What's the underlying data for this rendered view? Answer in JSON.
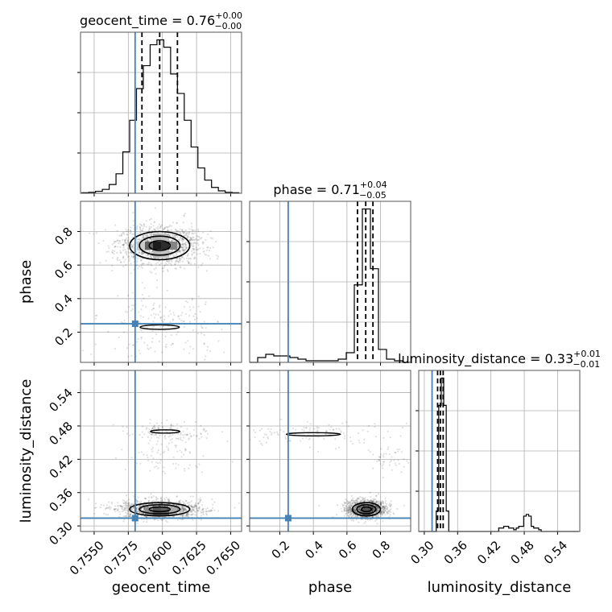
{
  "chart_data": {
    "type": "corner",
    "truth_color": "#4682b4",
    "grid": true,
    "parameters": [
      "geocent_time",
      "phase",
      "luminosity_distance"
    ],
    "truths": {
      "geocent_time": 0.758,
      "phase": 0.25,
      "luminosity_distance": 0.314
    },
    "axes": {
      "geocent_time": {
        "label": "geocent_time",
        "range": [
          0.754,
          0.7658
        ],
        "ticks": [
          0.755,
          0.7575,
          0.76,
          0.7625,
          0.765
        ],
        "tick_labels": [
          "0.7550",
          "0.7575",
          "0.7600",
          "0.7625",
          "0.7650"
        ]
      },
      "phase": {
        "label": "phase",
        "range": [
          0.02,
          0.98
        ],
        "ticks": [
          0.2,
          0.4,
          0.6,
          0.8
        ],
        "tick_labels": [
          "0.2",
          "0.4",
          "0.6",
          "0.8"
        ]
      },
      "luminosity_distance": {
        "label": "luminosity_distance",
        "range": [
          0.29,
          0.58
        ],
        "ticks": [
          0.3,
          0.36,
          0.42,
          0.48,
          0.54
        ],
        "tick_labels": [
          "0.30",
          "0.36",
          "0.42",
          "0.48",
          "0.54"
        ]
      }
    },
    "marginals": [
      {
        "param": "geocent_time",
        "title_name": "geocent_time",
        "title_value": "0.76",
        "title_plus": "+0.00",
        "title_minus": "−0.00",
        "quantiles": [
          0.7585,
          0.7598,
          0.7611
        ],
        "bin_edges": [
          0.7541,
          0.7546,
          0.7551,
          0.7556,
          0.7561,
          0.7566,
          0.7571,
          0.7576,
          0.7581,
          0.7586,
          0.7591,
          0.7596,
          0.7601,
          0.7606,
          0.7611,
          0.7616,
          0.7621,
          0.7626,
          0.7631,
          0.7636,
          0.7641,
          0.7646,
          0.7651,
          0.7656
        ],
        "counts": [
          1,
          2,
          4,
          8,
          18,
          40,
          85,
          150,
          215,
          262,
          305,
          315,
          300,
          245,
          205,
          150,
          95,
          52,
          27,
          12,
          5,
          2,
          1
        ]
      },
      {
        "param": "phase",
        "title_name": "phase",
        "title_value": "0.71",
        "title_plus": "+0.04",
        "title_minus": "−0.05",
        "quantiles": [
          0.663,
          0.712,
          0.755
        ],
        "bin_edges": [
          0.02,
          0.068,
          0.116,
          0.164,
          0.212,
          0.26,
          0.308,
          0.356,
          0.404,
          0.452,
          0.5,
          0.548,
          0.596,
          0.644,
          0.692,
          0.74,
          0.788,
          0.836,
          0.884,
          0.932,
          0.98
        ],
        "counts": [
          0,
          3,
          5,
          4,
          4,
          3,
          2,
          1,
          1,
          1,
          1,
          2,
          6,
          48,
          95,
          58,
          8,
          2,
          1,
          0
        ]
      },
      {
        "param": "luminosity_distance",
        "title_name": "luminosity_distance",
        "title_value": "0.33",
        "title_plus": "+0.01",
        "title_minus": "−0.01",
        "quantiles": [
          0.324,
          0.329,
          0.334
        ],
        "bin_edges": [
          0.29,
          0.2945,
          0.299,
          0.3035,
          0.308,
          0.3125,
          0.317,
          0.3215,
          0.326,
          0.3305,
          0.335,
          0.3395,
          0.344,
          0.3485,
          0.353,
          0.3575,
          0.362,
          0.3665,
          0.371,
          0.3755,
          0.38,
          0.3845,
          0.389,
          0.3935,
          0.398,
          0.4025,
          0.407,
          0.4115,
          0.416,
          0.4205,
          0.425,
          0.4295,
          0.434,
          0.4385,
          0.443,
          0.4475,
          0.452,
          0.4565,
          0.461,
          0.4655,
          0.47,
          0.4745,
          0.479,
          0.4835,
          0.488,
          0.4925,
          0.497,
          0.5015,
          0.506,
          0.5105,
          0.515,
          0.5195,
          0.524,
          0.5285,
          0.533,
          0.5375,
          0.542,
          0.5465,
          0.551,
          0.5555,
          0.56,
          0.5645,
          0.569,
          0.5735,
          0.578
        ],
        "counts": [
          0,
          0,
          0,
          0,
          0,
          0,
          0,
          12,
          74,
          90,
          74,
          12,
          0,
          0,
          0,
          0,
          0,
          0,
          0,
          0,
          0,
          0,
          0,
          0,
          0,
          0,
          0,
          0,
          0,
          0,
          0,
          0,
          2,
          2,
          3,
          3,
          2,
          2,
          1,
          2,
          3,
          3,
          9,
          10,
          9,
          3,
          2,
          2,
          1,
          0,
          0,
          0,
          0,
          0,
          0,
          0,
          0,
          0,
          0,
          0,
          0,
          0,
          0,
          0
        ]
      }
    ],
    "joint_2d": [
      {
        "x": "geocent_time",
        "y": "phase",
        "modes": [
          {
            "center": [
              0.7598,
              0.716
            ],
            "sigma": [
              0.0011,
              0.042
            ],
            "weight": 0.88
          },
          {
            "center": [
              0.7598,
              0.23
            ],
            "sigma": [
              0.0016,
              0.09
            ],
            "weight": 0.12
          }
        ]
      },
      {
        "x": "geocent_time",
        "y": "luminosity_distance",
        "modes": [
          {
            "center": [
              0.7598,
              0.33
            ],
            "sigma": [
              0.0011,
              0.006
            ],
            "weight": 0.86
          },
          {
            "center": [
              0.7602,
              0.47
            ],
            "sigma": [
              0.0012,
              0.006
            ],
            "weight": 0.09
          },
          {
            "center": [
              0.7605,
              0.425
            ],
            "sigma": [
              0.001,
              0.012
            ],
            "weight": 0.05
          }
        ]
      },
      {
        "x": "phase",
        "y": "luminosity_distance",
        "modes": [
          {
            "center": [
              0.716,
              0.33
            ],
            "sigma": [
              0.042,
              0.006
            ],
            "weight": 0.86
          },
          {
            "center": [
              0.4,
              0.465
            ],
            "sigma": [
              0.18,
              0.008
            ],
            "weight": 0.09
          },
          {
            "center": [
              0.86,
              0.425
            ],
            "sigma": [
              0.05,
              0.01
            ],
            "weight": 0.05
          }
        ]
      }
    ]
  }
}
